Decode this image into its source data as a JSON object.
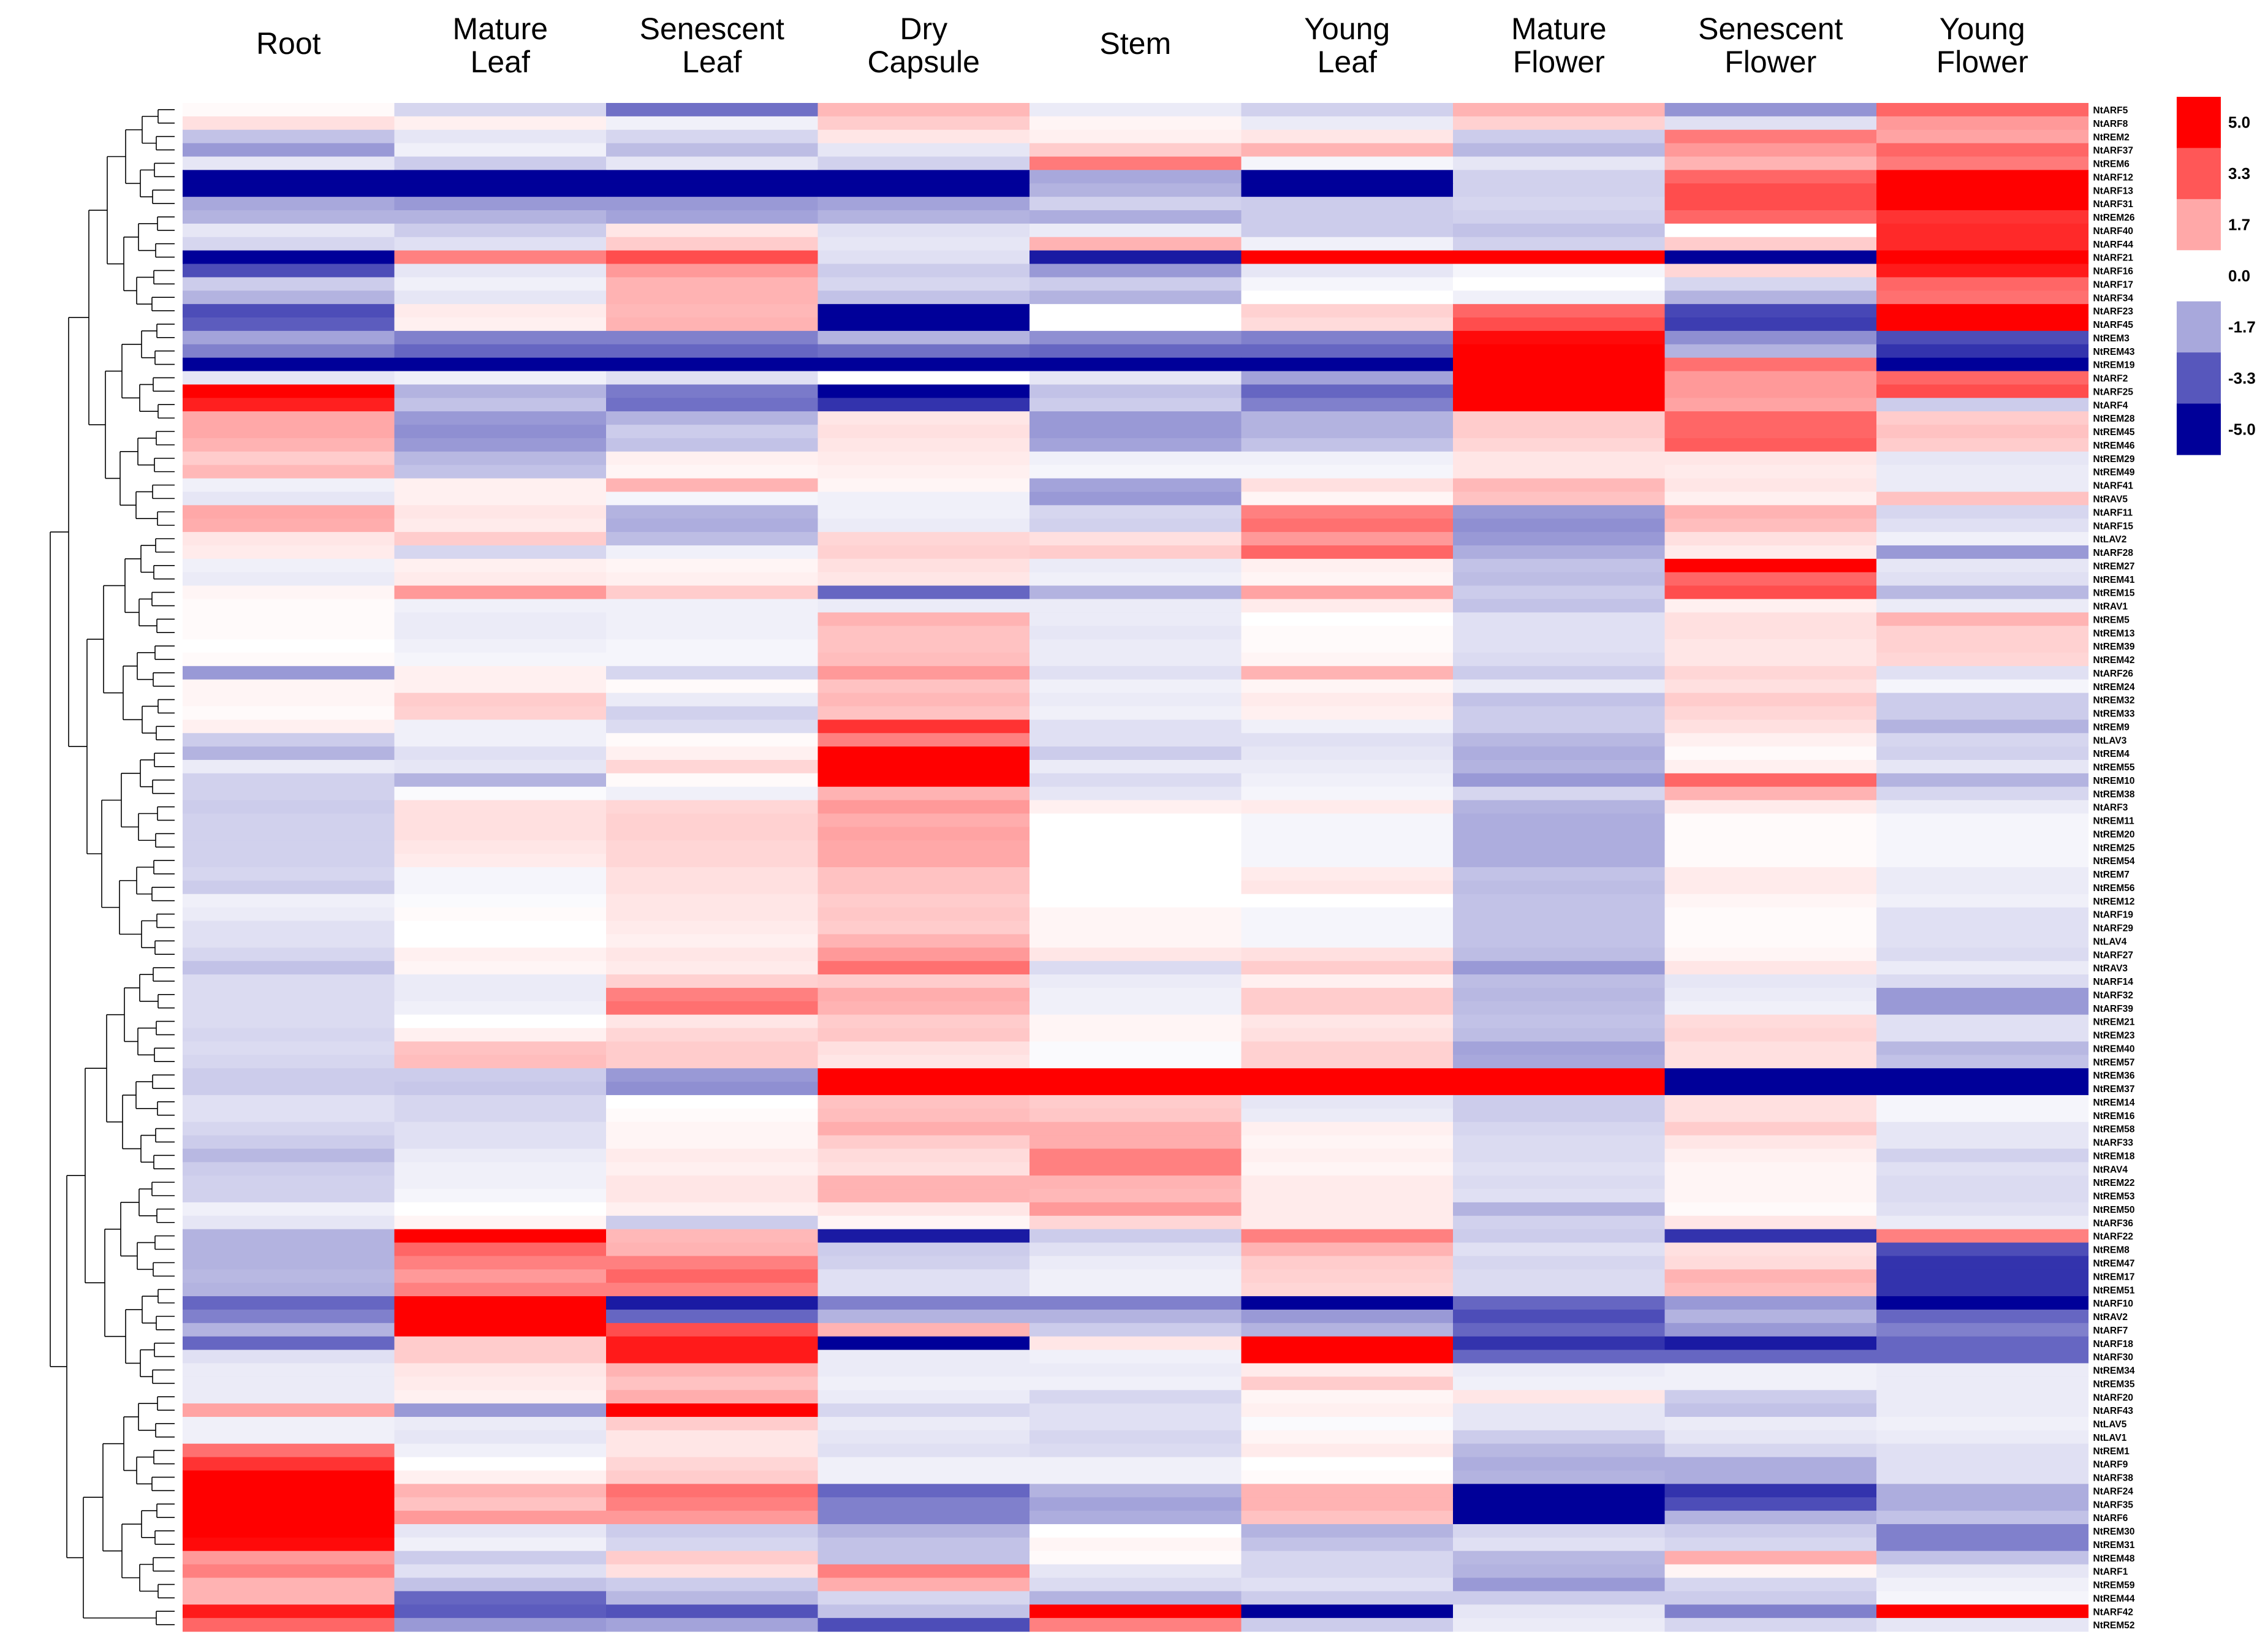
{
  "chart_data": {
    "type": "heatmap",
    "title": "",
    "columns": [
      "Root",
      "Mature Leaf",
      "Senescent Leaf",
      "Dry Capsule",
      "Stem",
      "Young Leaf",
      "Mature Flower",
      "Senescent Flower",
      "Young Flower"
    ],
    "rows": [
      "NtARF5",
      "NtARF8",
      "NtREM2",
      "NtARF37",
      "NtREM6",
      "NtARF12",
      "NtARF13",
      "NtARF31",
      "NtREM26",
      "NtARF40",
      "NtARF44",
      "NtARF21",
      "NtARF16",
      "NtARF17",
      "NtARF34",
      "NtARF23",
      "NtARF45",
      "NtREM3",
      "NtREM43",
      "NtREM19",
      "NtARF2",
      "NtARF25",
      "NtARF4",
      "NtREM28",
      "NtREM45",
      "NtREM46",
      "NtREM29",
      "NtREM49",
      "NtARF41",
      "NtRAV5",
      "NtARF11",
      "NtARF15",
      "NtLAV2",
      "NtARF28",
      "NtREM27",
      "NtREM41",
      "NtREM15",
      "NtRAV1",
      "NtREM5",
      "NtREM13",
      "NtREM39",
      "NtREM42",
      "NtARF26",
      "NtREM24",
      "NtREM32",
      "NtREM33",
      "NtREM9",
      "NtLAV3",
      "NtREM4",
      "NtREM55",
      "NtREM10",
      "NtREM38",
      "NtARF3",
      "NtREM11",
      "NtREM20",
      "NtREM25",
      "NtREM54",
      "NtREM7",
      "NtREM56",
      "NtREM12",
      "NtARF19",
      "NtARF29",
      "NtLAV4",
      "NtARF27",
      "NtRAV3",
      "NtARF14",
      "NtARF32",
      "NtARF39",
      "NtREM21",
      "NtREM23",
      "NtREM40",
      "NtREM57",
      "NtREM36",
      "NtREM37",
      "NtREM14",
      "NtREM16",
      "NtREM58",
      "NtARF33",
      "NtREM18",
      "NtRAV4",
      "NtREM22",
      "NtREM53",
      "NtREM50",
      "NtARF36",
      "NtARF22",
      "NtREM8",
      "NtREM47",
      "NtREM17",
      "NtREM51",
      "NtARF10",
      "NtRAV2",
      "NtARF7",
      "NtARF18",
      "NtARF30",
      "NtREM34",
      "NtREM35",
      "NtARF20",
      "NtARF43",
      "NtLAV5",
      "NtLAV1",
      "NtREM1",
      "NtARF9",
      "NtARF38",
      "NtARF24",
      "NtARF35",
      "NtARF6",
      "NtREM30",
      "NtREM31",
      "NtREM48",
      "NtARF1",
      "NtREM59",
      "NtREM44",
      "NtARF42",
      "NtREM52"
    ],
    "values": [
      [
        0.1,
        -0.8,
        -2.8,
        1.4,
        -0.4,
        -0.9,
        1.5,
        -2.1,
        3.0
      ],
      [
        0.6,
        0.3,
        -0.3,
        1.0,
        0.2,
        -0.4,
        0.9,
        -0.6,
        2.0
      ],
      [
        -1.2,
        -0.5,
        -0.8,
        0.5,
        0.3,
        0.5,
        -1.0,
        2.6,
        1.8
      ],
      [
        -2.0,
        -0.3,
        -1.3,
        -0.5,
        1.0,
        1.5,
        -1.4,
        2.0,
        3.0
      ],
      [
        -0.5,
        -1.0,
        -0.5,
        -0.9,
        2.6,
        -0.2,
        -0.5,
        1.5,
        2.6
      ],
      [
        -5.0,
        -5.0,
        -5.0,
        -5.0,
        -1.7,
        -5.0,
        -0.9,
        3.0,
        5.0
      ],
      [
        -5.0,
        -5.0,
        -5.0,
        -5.0,
        -1.5,
        -5.0,
        -0.9,
        3.5,
        5.0
      ],
      [
        -1.7,
        -2.0,
        -2.0,
        -1.8,
        -0.9,
        -1.0,
        -0.8,
        3.5,
        5.0
      ],
      [
        -1.5,
        -1.5,
        -1.8,
        -1.5,
        -1.6,
        -1.0,
        -0.9,
        3.0,
        4.0
      ],
      [
        -0.5,
        -1.0,
        0.5,
        -0.6,
        -0.4,
        -1.0,
        -1.2,
        0.0,
        4.2
      ],
      [
        -0.8,
        -0.6,
        1.0,
        -0.5,
        1.5,
        -0.3,
        -0.9,
        1.0,
        4.2
      ],
      [
        -5.0,
        2.5,
        3.5,
        -0.6,
        -4.5,
        5.0,
        5.0,
        -5.0,
        5.0
      ],
      [
        -3.5,
        -0.5,
        2.0,
        -1.0,
        -2.0,
        -0.5,
        -0.2,
        0.8,
        4.5
      ],
      [
        -1.0,
        -0.3,
        1.5,
        -0.8,
        -1.0,
        -0.2,
        0.0,
        -0.8,
        3.0
      ],
      [
        -1.5,
        -0.5,
        1.5,
        -1.2,
        -1.5,
        0.0,
        -0.3,
        -1.5,
        2.8
      ],
      [
        -3.5,
        0.4,
        1.4,
        -5.0,
        0.0,
        0.9,
        3.0,
        -3.6,
        5.0
      ],
      [
        -3.2,
        0.3,
        1.5,
        -5.0,
        0.0,
        0.7,
        3.5,
        -3.8,
        5.0
      ],
      [
        -1.8,
        -2.5,
        -2.5,
        -1.5,
        -2.2,
        -2.5,
        4.8,
        -2.2,
        -3.5
      ],
      [
        -2.5,
        -3.0,
        -3.0,
        -2.8,
        -3.0,
        -3.0,
        5.0,
        -1.5,
        -4.0
      ],
      [
        -5.0,
        -5.0,
        -5.0,
        -5.0,
        -5.0,
        -5.0,
        5.0,
        2.8,
        -5.0
      ],
      [
        -0.5,
        -0.3,
        -0.6,
        0.0,
        -0.5,
        -1.8,
        5.0,
        2.0,
        3.0
      ],
      [
        5.0,
        -1.5,
        -2.6,
        -5.0,
        -1.2,
        -3.0,
        5.0,
        2.0,
        3.5
      ],
      [
        4.4,
        -1.2,
        -2.8,
        -4.0,
        -1.0,
        -2.5,
        5.0,
        1.8,
        -1.0
      ],
      [
        1.7,
        -2.0,
        -1.5,
        0.5,
        -2.0,
        -1.5,
        1.0,
        3.0,
        1.0
      ],
      [
        1.7,
        -2.2,
        -1.0,
        0.6,
        -2.0,
        -1.5,
        1.0,
        3.0,
        1.2
      ],
      [
        1.5,
        -2.0,
        -1.2,
        0.5,
        -1.8,
        -1.2,
        0.8,
        3.2,
        1.0
      ],
      [
        1.0,
        -1.4,
        0.3,
        0.4,
        -0.3,
        -0.3,
        0.5,
        0.5,
        -0.5
      ],
      [
        1.4,
        -1.2,
        0.2,
        0.3,
        -0.2,
        -0.2,
        0.5,
        0.4,
        -0.4
      ],
      [
        -0.3,
        0.3,
        1.5,
        0.2,
        -1.8,
        0.6,
        1.4,
        0.5,
        -0.4
      ],
      [
        -0.5,
        0.3,
        -0.2,
        -0.3,
        -2.0,
        0.2,
        1.2,
        0.3,
        1.2
      ],
      [
        1.7,
        0.5,
        -1.5,
        -0.3,
        -0.8,
        2.5,
        -2.0,
        1.5,
        -0.8
      ],
      [
        1.6,
        0.4,
        -1.6,
        -0.4,
        -0.9,
        2.8,
        -2.2,
        1.3,
        -0.6
      ],
      [
        0.5,
        1.0,
        -1.3,
        0.8,
        0.6,
        2.0,
        -2.0,
        0.6,
        -0.3
      ],
      [
        0.4,
        -0.8,
        -0.3,
        0.9,
        1.0,
        3.0,
        -1.6,
        0.4,
        -2.0
      ],
      [
        -0.3,
        0.3,
        0.2,
        0.6,
        -0.4,
        0.3,
        -1.2,
        5.0,
        -0.5
      ],
      [
        -0.4,
        0.4,
        0.3,
        0.5,
        -0.3,
        0.2,
        -1.3,
        3.0,
        -0.6
      ],
      [
        0.2,
        2.0,
        1.0,
        -3.0,
        -1.5,
        1.8,
        -1.0,
        3.5,
        -1.4
      ],
      [
        0.1,
        -0.3,
        -0.3,
        -0.4,
        -0.4,
        0.4,
        -1.2,
        0.3,
        -0.4
      ],
      [
        0.1,
        -0.4,
        -0.3,
        1.5,
        -0.4,
        0.0,
        -0.6,
        0.6,
        1.5
      ],
      [
        0.1,
        -0.4,
        -0.3,
        1.2,
        -0.5,
        0.1,
        -0.6,
        0.6,
        0.9
      ],
      [
        0.0,
        -0.3,
        -0.2,
        1.2,
        -0.4,
        0.1,
        -0.6,
        0.5,
        0.9
      ],
      [
        0.1,
        -0.2,
        -0.2,
        1.3,
        -0.4,
        0.2,
        -0.7,
        0.5,
        0.8
      ],
      [
        -2.0,
        0.3,
        -0.8,
        2.0,
        -0.6,
        1.5,
        -1.0,
        0.8,
        -0.6
      ],
      [
        0.2,
        0.3,
        0.1,
        1.2,
        -0.3,
        0.2,
        -0.4,
        0.6,
        -0.2
      ],
      [
        0.2,
        1.0,
        -0.4,
        1.4,
        -0.4,
        0.4,
        -1.2,
        1.0,
        -1.0
      ],
      [
        0.1,
        0.9,
        -0.9,
        1.2,
        -0.3,
        0.3,
        -1.0,
        0.8,
        -1.0
      ],
      [
        0.3,
        -0.3,
        -0.7,
        4.0,
        -0.6,
        -0.3,
        -1.0,
        0.6,
        -1.5
      ],
      [
        -1.0,
        -0.3,
        0.1,
        2.5,
        -0.6,
        -0.6,
        -1.4,
        0.3,
        -0.8
      ],
      [
        -1.5,
        -0.6,
        0.3,
        5.0,
        -1.0,
        -0.5,
        -1.6,
        0.1,
        -0.9
      ],
      [
        -0.4,
        -0.5,
        0.8,
        5.0,
        -0.4,
        -0.4,
        -1.5,
        0.3,
        -0.5
      ],
      [
        -0.9,
        -1.5,
        0.1,
        5.0,
        -0.7,
        -0.3,
        -2.0,
        3.0,
        -1.5
      ],
      [
        -0.9,
        -0.1,
        -0.3,
        1.5,
        -0.5,
        -0.2,
        -0.8,
        1.5,
        -0.8
      ],
      [
        -1.0,
        0.6,
        0.8,
        2.0,
        0.3,
        0.4,
        -1.5,
        0.4,
        -0.4
      ],
      [
        -0.9,
        0.6,
        0.9,
        1.6,
        0.0,
        -0.2,
        -1.6,
        0.1,
        -0.2
      ],
      [
        -0.9,
        0.6,
        0.9,
        1.8,
        0.0,
        -0.2,
        -1.6,
        0.1,
        -0.2
      ],
      [
        -0.9,
        0.5,
        0.8,
        1.7,
        0.0,
        -0.2,
        -1.6,
        0.1,
        -0.2
      ],
      [
        -0.9,
        0.4,
        0.8,
        1.7,
        0.0,
        -0.2,
        -1.6,
        0.1,
        -0.2
      ],
      [
        -0.8,
        -0.2,
        0.6,
        1.2,
        0.0,
        0.4,
        -1.2,
        0.4,
        -0.4
      ],
      [
        -1.0,
        -0.2,
        0.6,
        1.2,
        0.0,
        0.5,
        -1.3,
        0.4,
        -0.4
      ],
      [
        -0.3,
        -0.1,
        0.5,
        1.0,
        0.0,
        0.0,
        -1.2,
        0.2,
        -0.3
      ],
      [
        -0.4,
        0.1,
        0.5,
        1.1,
        0.2,
        -0.2,
        -1.2,
        0.1,
        -0.6
      ],
      [
        -0.6,
        0.0,
        0.4,
        1.0,
        0.2,
        -0.2,
        -1.2,
        0.1,
        -0.6
      ],
      [
        -0.6,
        0.0,
        0.3,
        1.5,
        0.2,
        -0.2,
        -1.2,
        0.1,
        -0.6
      ],
      [
        -0.8,
        0.3,
        0.5,
        2.0,
        0.5,
        0.6,
        -1.3,
        0.2,
        -0.7
      ],
      [
        -1.2,
        0.2,
        0.4,
        2.8,
        -0.7,
        1.0,
        -2.0,
        0.5,
        -0.4
      ],
      [
        -0.7,
        -0.4,
        0.9,
        1.0,
        -0.4,
        0.3,
        -1.3,
        -0.5,
        -0.7
      ],
      [
        -0.7,
        -0.4,
        2.5,
        1.6,
        -0.3,
        1.0,
        -1.4,
        -0.4,
        -2.0
      ],
      [
        -0.7,
        -0.3,
        2.8,
        1.5,
        -0.3,
        1.0,
        -1.3,
        -0.3,
        -2.0
      ],
      [
        -0.7,
        0.0,
        0.5,
        1.0,
        0.2,
        0.5,
        -1.2,
        0.7,
        -0.6
      ],
      [
        -0.8,
        0.3,
        0.8,
        1.1,
        0.2,
        0.6,
        -1.3,
        0.8,
        -0.6
      ],
      [
        -0.7,
        1.2,
        1.0,
        0.6,
        -0.1,
        0.9,
        -1.8,
        0.6,
        -1.4
      ],
      [
        -0.8,
        1.3,
        1.0,
        0.5,
        -0.1,
        0.9,
        -1.7,
        0.6,
        -1.2
      ],
      [
        -1.0,
        -1.0,
        -2.0,
        5.0,
        5.0,
        5.0,
        5.0,
        -5.0,
        -5.0
      ],
      [
        -1.0,
        -1.1,
        -2.2,
        5.0,
        5.0,
        5.0,
        5.0,
        -5.0,
        -5.0
      ],
      [
        -0.6,
        -0.8,
        0.0,
        1.2,
        1.0,
        -0.5,
        -1.0,
        0.6,
        -0.2
      ],
      [
        -0.6,
        -0.8,
        0.1,
        1.3,
        1.1,
        -0.4,
        -1.0,
        0.6,
        -0.2
      ],
      [
        -0.8,
        -0.6,
        0.2,
        1.6,
        1.6,
        0.3,
        -0.8,
        1.0,
        -0.5
      ],
      [
        -1.0,
        -0.6,
        0.2,
        1.0,
        1.6,
        0.2,
        -0.7,
        0.5,
        -0.5
      ],
      [
        -1.4,
        -0.4,
        0.4,
        0.7,
        2.5,
        0.3,
        -0.7,
        0.3,
        -0.9
      ],
      [
        -1.0,
        -0.3,
        0.3,
        0.6,
        2.5,
        0.2,
        -0.6,
        0.2,
        -0.6
      ],
      [
        -0.9,
        -0.3,
        0.5,
        1.5,
        1.5,
        0.4,
        -0.7,
        0.2,
        -0.7
      ],
      [
        -0.9,
        -0.2,
        0.5,
        1.5,
        1.4,
        0.4,
        -0.6,
        0.2,
        -0.7
      ],
      [
        -0.3,
        0.0,
        0.3,
        0.5,
        2.0,
        0.4,
        -1.5,
        0.1,
        -0.6
      ],
      [
        -0.5,
        0.2,
        -1.0,
        0.2,
        0.8,
        0.4,
        -0.9,
        0.5,
        -0.4
      ],
      [
        -1.5,
        5.0,
        1.4,
        -4.5,
        -1.0,
        2.5,
        -1.0,
        -4.0,
        2.5
      ],
      [
        -1.5,
        3.0,
        1.5,
        -1.0,
        -0.6,
        1.5,
        -0.6,
        0.6,
        -3.5
      ],
      [
        -1.5,
        2.5,
        2.5,
        -0.9,
        -0.4,
        1.0,
        -0.8,
        0.7,
        -4.0
      ],
      [
        -1.4,
        2.0,
        3.0,
        -0.6,
        -0.3,
        0.9,
        -0.7,
        1.5,
        -4.0
      ],
      [
        -1.5,
        2.5,
        2.5,
        -0.6,
        -0.3,
        0.8,
        -0.7,
        1.3,
        -4.0
      ],
      [
        -3.0,
        5.0,
        -4.5,
        -2.5,
        -2.5,
        -5.0,
        -3.0,
        -2.0,
        -5.0
      ],
      [
        -2.5,
        5.0,
        -3.0,
        -1.5,
        -1.5,
        -2.0,
        -3.5,
        -1.5,
        -3.0
      ],
      [
        -1.5,
        5.0,
        3.5,
        1.5,
        -1.0,
        -1.5,
        -3.0,
        -2.0,
        -2.5
      ],
      [
        -3.0,
        1.0,
        4.5,
        -5.0,
        0.5,
        5.0,
        -4.0,
        -4.5,
        -3.0
      ],
      [
        -0.6,
        1.0,
        4.5,
        -0.4,
        -0.3,
        5.0,
        -3.0,
        -3.0,
        -3.0
      ],
      [
        -0.4,
        0.5,
        1.5,
        -0.4,
        -0.4,
        0.4,
        -0.4,
        -0.3,
        -0.4
      ],
      [
        -0.4,
        0.4,
        1.2,
        -0.3,
        -0.3,
        1.0,
        -0.3,
        -0.3,
        -0.4
      ],
      [
        -0.4,
        0.3,
        1.6,
        -0.4,
        -0.8,
        0.2,
        0.5,
        -1.0,
        -0.4
      ],
      [
        1.8,
        -2.0,
        5.0,
        -0.8,
        -0.6,
        0.3,
        -0.5,
        -1.2,
        -0.4
      ],
      [
        -0.3,
        -0.4,
        1.0,
        -0.4,
        -0.6,
        -0.1,
        -0.5,
        -0.4,
        -0.3
      ],
      [
        -0.3,
        -0.5,
        0.5,
        -0.5,
        -0.8,
        0.2,
        -1.0,
        -0.5,
        -0.4
      ],
      [
        2.8,
        -0.3,
        0.5,
        -0.6,
        -0.7,
        0.4,
        -1.4,
        -0.8,
        -0.6
      ],
      [
        4.0,
        0.0,
        0.8,
        -0.3,
        -0.3,
        0.0,
        -1.6,
        -1.6,
        -0.6
      ],
      [
        5.0,
        0.3,
        1.0,
        -0.3,
        -0.3,
        0.1,
        -1.5,
        -1.6,
        -0.6
      ],
      [
        5.0,
        1.5,
        2.8,
        -3.0,
        -1.5,
        1.5,
        -5.0,
        -4.0,
        -1.6
      ],
      [
        5.0,
        1.2,
        2.5,
        -2.5,
        -1.8,
        1.5,
        -5.0,
        -3.5,
        -1.6
      ],
      [
        5.0,
        2.0,
        2.0,
        -2.5,
        -1.6,
        1.2,
        -5.0,
        -1.5,
        -1.2
      ],
      [
        5.0,
        -0.5,
        -1.0,
        -1.5,
        0.0,
        -1.5,
        -0.8,
        -1.0,
        -2.5
      ],
      [
        4.8,
        -0.3,
        -0.8,
        -1.2,
        0.2,
        -1.2,
        -0.6,
        -0.8,
        -2.5
      ],
      [
        2.0,
        -1.0,
        1.0,
        -1.2,
        0.1,
        -0.8,
        -1.4,
        1.6,
        -1.2
      ],
      [
        2.5,
        -0.6,
        0.6,
        2.5,
        -0.5,
        -0.8,
        -1.5,
        0.2,
        -0.5
      ],
      [
        1.5,
        -1.2,
        -1.0,
        1.6,
        -0.7,
        -0.6,
        -2.0,
        -0.8,
        -0.3
      ],
      [
        1.5,
        -3.0,
        -1.4,
        -0.8,
        -1.5,
        -1.0,
        -1.0,
        -1.0,
        -0.2
      ],
      [
        4.5,
        -3.2,
        -3.4,
        -1.2,
        5.0,
        -5.0,
        -0.5,
        -2.5,
        5.0
      ],
      [
        3.0,
        -2.0,
        -1.8,
        -3.5,
        2.5,
        -1.0,
        -0.4,
        -0.8,
        -0.5
      ]
    ],
    "legend": {
      "ticks": [
        5.0,
        3.3,
        1.7,
        0.0,
        -1.7,
        -3.3,
        -5.0
      ],
      "tick_labels": [
        "5.0",
        "3.3",
        "1.7",
        "0.0",
        "-1.7",
        "-3.3",
        "-5.0"
      ],
      "placement": "right",
      "max_color": "#ff0000",
      "mid_color": "#ffffff",
      "min_color": "#000099"
    },
    "dendrogram": "left, row clustering"
  }
}
